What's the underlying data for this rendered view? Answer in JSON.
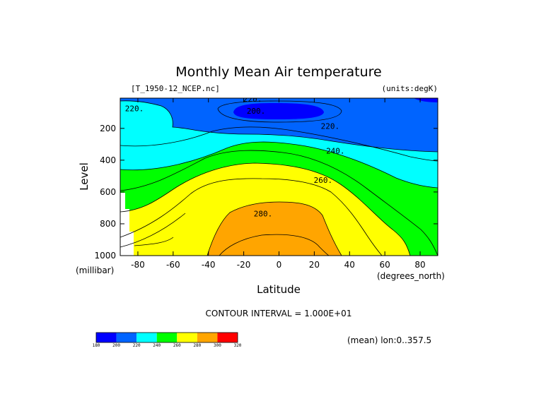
{
  "figure": {
    "title": "Monthly Mean Air temperature",
    "file_label": "[T_1950-12_NCEP.nc]",
    "units_label": "(units:degK)",
    "contour_interval_label": "CONTOUR INTERVAL = 1.000E+01",
    "mean_label": "(mean) lon:0..357.5",
    "x_unit": "(degrees_north)",
    "y_unit": "(millibar)"
  },
  "chart_data": {
    "type": "contour",
    "title": "Monthly Mean Air temperature",
    "xlabel": "Latitude",
    "ylabel": "Level",
    "xlim": [
      -90,
      90
    ],
    "ylim": [
      10,
      1000
    ],
    "y_inverted": true,
    "x_ticks": [
      -80,
      -60,
      -40,
      -20,
      0,
      20,
      40,
      60,
      80
    ],
    "y_ticks": [
      200,
      400,
      600,
      800,
      1000
    ],
    "contour_interval": 10,
    "contour_labels": [
      {
        "text": "220.",
        "lat": -82,
        "level": 75
      },
      {
        "text": "220.",
        "lat": -15,
        "level": 15
      },
      {
        "text": "200.",
        "lat": -13,
        "level": 90
      },
      {
        "text": "220.",
        "lat": 29,
        "level": 185
      },
      {
        "text": "240.",
        "lat": 32,
        "level": 340
      },
      {
        "text": "260.",
        "lat": 25,
        "level": 525
      },
      {
        "text": "280.",
        "lat": -9,
        "level": 735
      }
    ],
    "colorbar": {
      "levels": [
        180,
        200,
        220,
        240,
        260,
        280,
        300,
        320
      ],
      "colors": [
        "#0000ff",
        "#0064ff",
        "#00ffff",
        "#00ff00",
        "#ffff00",
        "#ffa500",
        "#ff0000"
      ]
    },
    "grid": false
  }
}
